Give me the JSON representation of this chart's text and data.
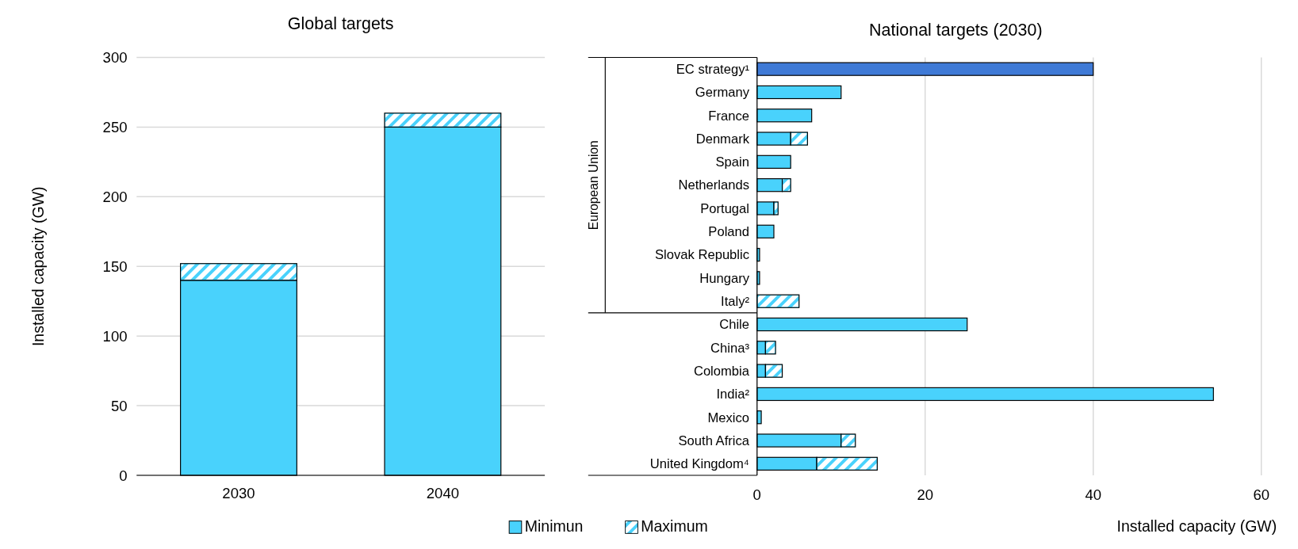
{
  "chart_data": [
    {
      "type": "bar",
      "title": "Global targets",
      "ylabel": "Installed capacity (GW)",
      "categories": [
        "2030",
        "2040"
      ],
      "stacked": true,
      "ylim": [
        0,
        300
      ],
      "yticks": [
        0,
        50,
        100,
        150,
        200,
        250,
        300
      ],
      "grid": "y",
      "legend": "bottom",
      "series": [
        {
          "name": "Minimun",
          "color": "#49d2fc",
          "values": [
            140,
            250
          ]
        },
        {
          "name": "Maximum",
          "color": "#49d2fc",
          "values": [
            12,
            10
          ]
        }
      ]
    },
    {
      "type": "bar",
      "title": "National targets (2030)",
      "xlabel": "Installed capacity (GW)",
      "orientation": "horizontal",
      "stacked": true,
      "annotations": [
        "European Union"
      ],
      "categories": [
        "EC strategy¹",
        "Germany",
        "France",
        "Denmark",
        "Spain",
        "Netherlands",
        "Portugal",
        "Poland",
        "Slovak Republic",
        "Hungary",
        "Italy²",
        "Chile",
        "China³",
        "Colombia",
        "India²",
        "Mexico",
        "South Africa",
        "United Kingdom⁴"
      ],
      "xlim": [
        0,
        60
      ],
      "xticks": [
        0,
        20,
        40,
        60
      ],
      "grid": "x",
      "series": [
        {
          "colors": [
            "#3f7ad6",
            "#49d2fc",
            "#49d2fc",
            "#49d2fc",
            "#49d2fc",
            "#49d2fc",
            "#49d2fc",
            "#49d2fc",
            "#49d2fc",
            "#49d2fc",
            "#49d2fc",
            "#49d2fc",
            "#49d2fc",
            "#49d2fc",
            "#49d2fc",
            "#49d2fc",
            "#49d2fc",
            "#49d2fc"
          ],
          "values": [
            40,
            10,
            6.5,
            4,
            4,
            3,
            2,
            2,
            0.3,
            0.3,
            0,
            25,
            1,
            1,
            54.3,
            0.5,
            10,
            7.1
          ]
        },
        {
          "color": "#49d2fc",
          "values": [
            0,
            0,
            0,
            2,
            0,
            1,
            0.5,
            0,
            0,
            0,
            5,
            0,
            1.2,
            2,
            0,
            0,
            1.7,
            7.2
          ]
        }
      ]
    }
  ]
}
